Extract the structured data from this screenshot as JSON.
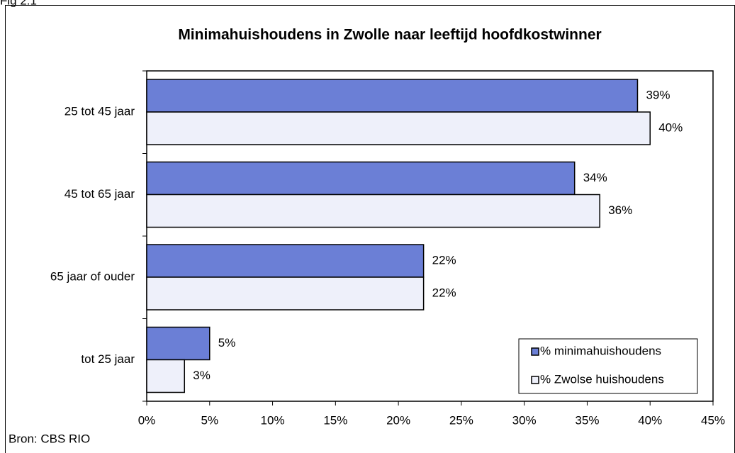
{
  "chart_data": {
    "type": "bar",
    "orientation": "horizontal",
    "figure_label": "Fig 2.1",
    "title": "Minimahuishoudens in Zwolle naar leeftijd hoofdkostwinner",
    "source": "Bron: CBS RIO",
    "categories": [
      "25 tot 45 jaar",
      "45 tot 65 jaar",
      "65 jaar of ouder",
      "tot 25 jaar"
    ],
    "series": [
      {
        "name": "% minimahuishoudens",
        "color": "#6b7fd6",
        "values": [
          39,
          34,
          22,
          5
        ],
        "value_labels": [
          "39%",
          "34%",
          "22%",
          "5%"
        ]
      },
      {
        "name": "% Zwolse huishoudens",
        "color": "#eef0fa",
        "values": [
          40,
          36,
          22,
          3
        ],
        "value_labels": [
          "40%",
          "36%",
          "22%",
          "3%"
        ]
      }
    ],
    "xlim": [
      0,
      45
    ],
    "xticks": [
      {
        "value": 0,
        "label": "0%"
      },
      {
        "value": 5,
        "label": "5%"
      },
      {
        "value": 10,
        "label": "10%"
      },
      {
        "value": 15,
        "label": "15%"
      },
      {
        "value": 20,
        "label": "20%"
      },
      {
        "value": 25,
        "label": "25%"
      },
      {
        "value": 30,
        "label": "30%"
      },
      {
        "value": 35,
        "label": "35%"
      },
      {
        "value": 40,
        "label": "40%"
      },
      {
        "value": 45,
        "label": "45%"
      }
    ],
    "grid": false,
    "legend": "lower right"
  }
}
